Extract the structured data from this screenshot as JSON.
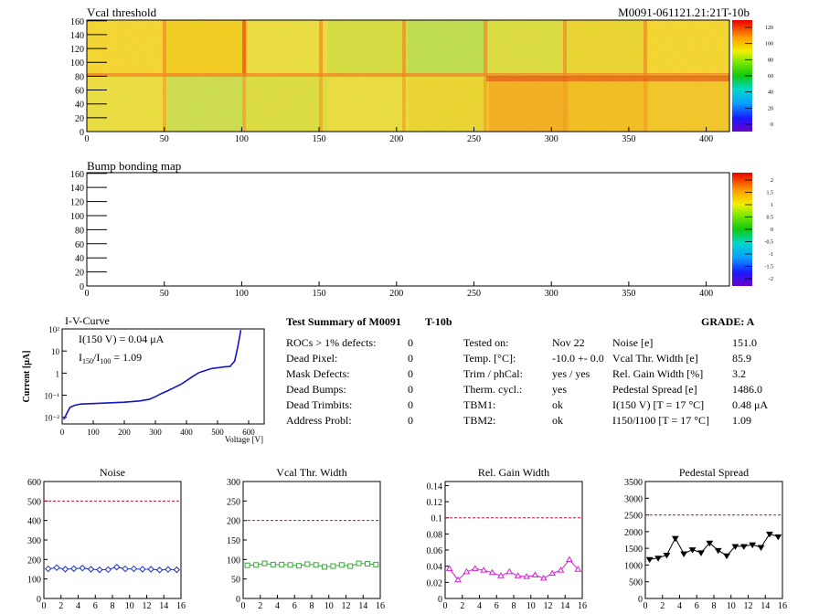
{
  "top_map": {
    "title": "Vcal threshold",
    "id_label": "M0091-061121.21:21T-10b",
    "x_ticks": [
      "0",
      "50",
      "100",
      "150",
      "200",
      "250",
      "300",
      "350",
      "400"
    ],
    "y_ticks": [
      "0",
      "20",
      "40",
      "60",
      "80",
      "100",
      "120",
      "140",
      "160"
    ],
    "z_ticks": [
      "120",
      "100",
      "80",
      "60",
      "40",
      "20",
      "0"
    ]
  },
  "bump_map": {
    "title": "Bump bonding map",
    "x_ticks": [
      "0",
      "50",
      "100",
      "150",
      "200",
      "250",
      "300",
      "350",
      "400"
    ],
    "y_ticks": [
      "0",
      "20",
      "40",
      "60",
      "80",
      "100",
      "120",
      "140",
      "160"
    ],
    "z_ticks": [
      "2",
      "1.5",
      "1",
      "0.5",
      "0",
      "-0.5",
      "-1",
      "-1.5",
      "-2"
    ]
  },
  "iv": {
    "title": "I-V-Curve",
    "ylabel": "Current [μA]",
    "xlabel": "Voltage [V]",
    "x_ticks": [
      "0",
      "100",
      "200",
      "300",
      "400",
      "500",
      "600"
    ],
    "y_ticks": [
      "10²",
      "10",
      "1",
      "10⁻¹",
      "10⁻²"
    ],
    "annot1": "I(150 V) = 0.04 μA",
    "annot2_a": "I",
    "annot2_sub1": "150",
    "annot2_b": "/I",
    "annot2_sub2": "100",
    "annot2_c": " =  1.09"
  },
  "summary": {
    "title": "Test Summary of M0091",
    "module": "T-10b",
    "grade": "GRADE:  A",
    "left": [
      {
        "label": "ROCs > 1% defects:",
        "value": "0"
      },
      {
        "label": "Dead Pixel:",
        "value": "0"
      },
      {
        "label": "Mask Defects:",
        "value": "0"
      },
      {
        "label": "Dead Bumps:",
        "value": "0"
      },
      {
        "label": "Dead Trimbits:",
        "value": "0"
      },
      {
        "label": "Address Probl:",
        "value": "0"
      }
    ],
    "mid": [
      {
        "label": "Tested on:",
        "value": "Nov 22"
      },
      {
        "label": "Temp. [°C]:",
        "value": "-10.0 +- 0.0"
      },
      {
        "label": "Trim / phCal:",
        "value": "yes / yes"
      },
      {
        "label": "Therm. cycl.:",
        "value": "yes"
      },
      {
        "label": "TBM1:",
        "value": "ok"
      },
      {
        "label": "TBM2:",
        "value": "ok"
      }
    ],
    "right": [
      {
        "label": "Noise [e]",
        "value": "151.0"
      },
      {
        "label": "Vcal Thr. Width [e]",
        "value": "85.9"
      },
      {
        "label": "Rel. Gain Width [%]",
        "value": "3.2"
      },
      {
        "label": "Pedestal Spread [e]",
        "value": "1486.0"
      },
      {
        "label": "I(150 V) [T = 17 °C]",
        "value": "0.48 μA"
      },
      {
        "label": "I150/I100  [T = 17 °C]",
        "value": "1.09"
      }
    ]
  },
  "colors": {
    "noise": "#1c33c6",
    "vcal": "#3ca83c",
    "gain": "#d21fd2",
    "ped": "#000000",
    "limit": "#c8102e",
    "iv": "#1414c8"
  },
  "chart_data": [
    {
      "type": "line",
      "title": "Noise",
      "x": [
        0,
        1,
        2,
        3,
        4,
        5,
        6,
        7,
        8,
        9,
        10,
        11,
        12,
        13,
        14,
        15
      ],
      "values": [
        152,
        158,
        150,
        153,
        156,
        150,
        147,
        148,
        161,
        152,
        152,
        150,
        150,
        146,
        149,
        147
      ],
      "limit": 500,
      "ylim": [
        0,
        600
      ],
      "y_ticks": [
        "0",
        "100",
        "200",
        "300",
        "400",
        "500",
        "600"
      ],
      "x_ticks": [
        "0",
        "2",
        "4",
        "6",
        "8",
        "10",
        "12",
        "14",
        "16"
      ]
    },
    {
      "type": "line",
      "title": "Vcal Thr. Width",
      "x": [
        0,
        1,
        2,
        3,
        4,
        5,
        6,
        7,
        8,
        9,
        10,
        11,
        12,
        13,
        14,
        15
      ],
      "values": [
        85,
        86,
        90,
        87,
        87,
        86,
        84,
        88,
        86,
        81,
        83,
        86,
        83,
        90,
        89,
        87
      ],
      "limit": 200,
      "ylim": [
        0,
        300
      ],
      "y_ticks": [
        "0",
        "50",
        "100",
        "150",
        "200",
        "250",
        "300"
      ],
      "x_ticks": [
        "0",
        "2",
        "4",
        "6",
        "8",
        "10",
        "12",
        "14",
        "16"
      ]
    },
    {
      "type": "line",
      "title": "Rel. Gain Width",
      "x": [
        0,
        1,
        2,
        3,
        4,
        5,
        6,
        7,
        8,
        9,
        10,
        11,
        12,
        13,
        14,
        15
      ],
      "values": [
        0.037,
        0.023,
        0.033,
        0.037,
        0.035,
        0.032,
        0.028,
        0.033,
        0.028,
        0.027,
        0.029,
        0.025,
        0.031,
        0.035,
        0.048,
        0.036
      ],
      "limit": 0.1,
      "ylim": [
        0,
        0.145
      ],
      "y_ticks": [
        "0",
        "0.02",
        "0.04",
        "0.06",
        "0.08",
        "0.1",
        "0.12",
        "0.14"
      ],
      "x_ticks": [
        "0",
        "2",
        "4",
        "6",
        "8",
        "10",
        "12",
        "14",
        "16"
      ]
    },
    {
      "type": "line",
      "title": "Pedestal Spread",
      "x": [
        0,
        1,
        2,
        3,
        4,
        5,
        6,
        7,
        8,
        9,
        10,
        11,
        12,
        13,
        14,
        15
      ],
      "values": [
        1170,
        1210,
        1300,
        1800,
        1340,
        1460,
        1370,
        1660,
        1440,
        1280,
        1560,
        1560,
        1610,
        1530,
        1930,
        1850
      ],
      "limit": 2500,
      "ylim": [
        0,
        3500
      ],
      "y_ticks": [
        "0",
        "500",
        "1000",
        "1500",
        "2000",
        "2500",
        "3000",
        "3500"
      ],
      "x_ticks": [
        "0",
        "2",
        "4",
        "6",
        "8",
        "10",
        "12",
        "14",
        "16"
      ]
    },
    {
      "type": "line",
      "title": "I-V-Curve",
      "xlabel": "Voltage [V]",
      "ylabel": "Current [μA]",
      "log_y": true,
      "xlim": [
        0,
        650
      ],
      "ylim": [
        0.005,
        100
      ],
      "x": [
        5,
        15,
        25,
        40,
        60,
        100,
        150,
        200,
        250,
        280,
        300,
        320,
        340,
        360,
        380,
        400,
        420,
        440,
        460,
        480,
        500,
        520,
        540,
        555,
        565,
        575
      ],
      "values": [
        0.008,
        0.015,
        0.028,
        0.035,
        0.04,
        0.042,
        0.045,
        0.048,
        0.055,
        0.065,
        0.085,
        0.12,
        0.16,
        0.22,
        0.3,
        0.45,
        0.7,
        1.05,
        1.3,
        1.6,
        1.75,
        1.9,
        2.0,
        3.5,
        15,
        90
      ]
    }
  ]
}
